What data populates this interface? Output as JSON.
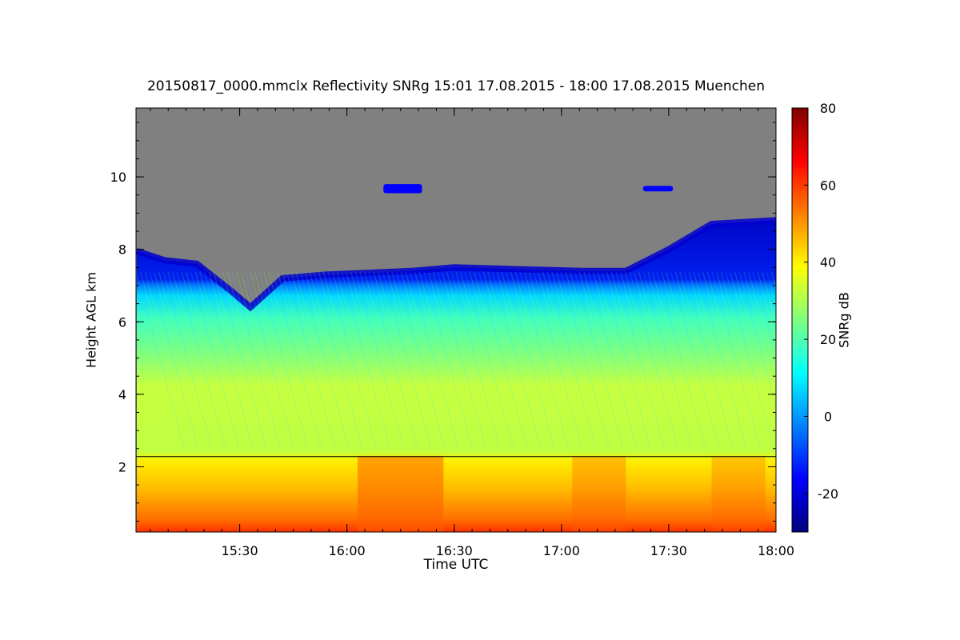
{
  "chart_data": {
    "type": "heatmap",
    "title": "20150817_0000.mmclx Reflectivity SNRg   15:01 17.08.2015 - 18:00 17.08.2015 Muenchen",
    "xlabel": "Time UTC",
    "ylabel": "Height AGL km",
    "xlim_hours": [
      15.0167,
      18.0
    ],
    "ylim_km": [
      0.2,
      11.9
    ],
    "x_ticks": [
      {
        "value": 15.5,
        "label": "15:30"
      },
      {
        "value": 16.0,
        "label": "16:00"
      },
      {
        "value": 16.5,
        "label": "16:30"
      },
      {
        "value": 17.0,
        "label": "17:00"
      },
      {
        "value": 17.5,
        "label": "17:30"
      },
      {
        "value": 18.0,
        "label": "18:00"
      }
    ],
    "y_ticks": [
      {
        "value": 2,
        "label": "2"
      },
      {
        "value": 4,
        "label": "4"
      },
      {
        "value": 6,
        "label": "6"
      },
      {
        "value": 8,
        "label": "8"
      },
      {
        "value": 10,
        "label": "10"
      }
    ],
    "colorbar": {
      "label": "SNRg dB",
      "range": [
        -30,
        80
      ],
      "ticks": [
        {
          "value": -20,
          "label": "-20"
        },
        {
          "value": 0,
          "label": "0"
        },
        {
          "value": 20,
          "label": "20"
        },
        {
          "value": 40,
          "label": "40"
        },
        {
          "value": 60,
          "label": "60"
        },
        {
          "value": 80,
          "label": "80"
        }
      ],
      "colors": [
        "#000080",
        "#0000ff",
        "#0080ff",
        "#00ffff",
        "#80ff80",
        "#ffff00",
        "#ff8000",
        "#ff0000",
        "#800000"
      ]
    },
    "no_signal_color": "#808080",
    "cloud_top_km": [
      {
        "t": 15.02,
        "h": 7.95
      },
      {
        "t": 15.15,
        "h": 7.7
      },
      {
        "t": 15.3,
        "h": 7.6
      },
      {
        "t": 15.45,
        "h": 6.9
      },
      {
        "t": 15.55,
        "h": 6.4
      },
      {
        "t": 15.7,
        "h": 7.2
      },
      {
        "t": 15.9,
        "h": 7.3
      },
      {
        "t": 16.1,
        "h": 7.35
      },
      {
        "t": 16.3,
        "h": 7.4
      },
      {
        "t": 16.5,
        "h": 7.5
      },
      {
        "t": 16.8,
        "h": 7.45
      },
      {
        "t": 17.1,
        "h": 7.4
      },
      {
        "t": 17.3,
        "h": 7.4
      },
      {
        "t": 17.5,
        "h": 8.0
      },
      {
        "t": 17.7,
        "h": 8.7
      },
      {
        "t": 18.0,
        "h": 8.8
      }
    ],
    "melting_layer_km": 2.28,
    "high_echo_patches": [
      {
        "t0": 16.17,
        "t1": 16.35,
        "h0": 9.55,
        "h1": 9.8
      },
      {
        "t0": 17.38,
        "t1": 17.52,
        "h0": 9.6,
        "h1": 9.75
      }
    ],
    "snr_profile_db": [
      {
        "h": 0.2,
        "snr": 55
      },
      {
        "h": 1.0,
        "snr": 47
      },
      {
        "h": 2.2,
        "snr": 40
      },
      {
        "h": 2.6,
        "snr": 35
      },
      {
        "h": 4.0,
        "snr": 30
      },
      {
        "h": 6.0,
        "snr": 16
      },
      {
        "h": 7.0,
        "snr": 6
      },
      {
        "h": 7.6,
        "snr": -10
      }
    ]
  }
}
